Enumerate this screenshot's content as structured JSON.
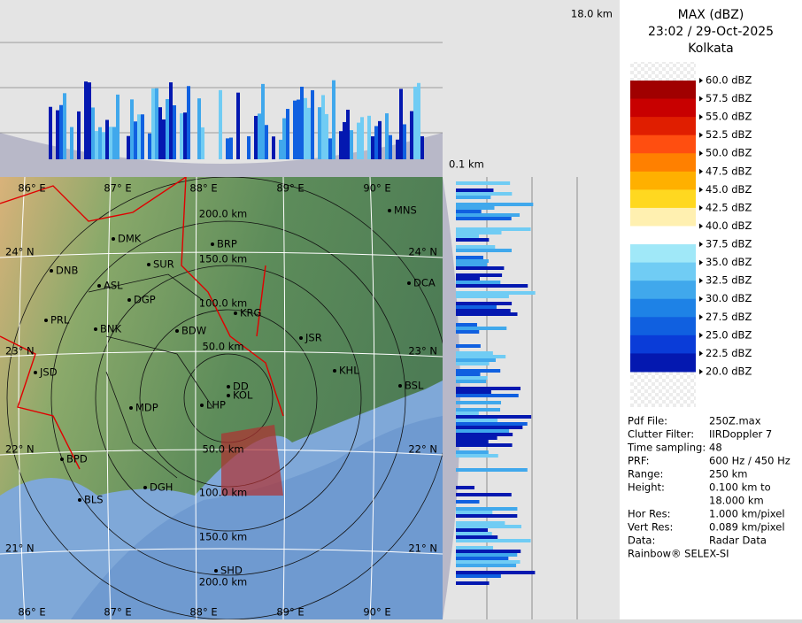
{
  "header": {
    "height_top": "18.0 km",
    "height_bottom": "0.1 km",
    "product": "MAX (dBZ)",
    "time": "23:02 / 29-Oct-2025",
    "station": "Kolkata"
  },
  "legend": {
    "labels": [
      "60.0 dBZ",
      "57.5 dBZ",
      "55.0 dBZ",
      "52.5 dBZ",
      "50.0 dBZ",
      "47.5 dBZ",
      "45.0 dBZ",
      "42.5 dBZ",
      "40.0 dBZ",
      "37.5 dBZ",
      "35.0 dBZ",
      "32.5 dBZ",
      "30.0 dBZ",
      "27.5 dBZ",
      "25.0 dBZ",
      "22.5 dBZ",
      "20.0 dBZ"
    ],
    "colors": [
      "#a00000",
      "#c80000",
      "#e01e00",
      "#ff4e10",
      "#ff8000",
      "#ffb000",
      "#ffd820",
      "#fff0b0",
      "#ffffff",
      "#a0e8f8",
      "#70ccf4",
      "#40a8ec",
      "#1e82e6",
      "#1060e0",
      "#0a3cd8",
      "#0418b0"
    ]
  },
  "info": [
    [
      "Pdf File:",
      "250Z.max"
    ],
    [
      "Clutter Filter:",
      "IIRDoppler 7"
    ],
    [
      "Time sampling:",
      "48"
    ],
    [
      "PRF:",
      "600 Hz / 450 Hz"
    ],
    [
      "Range:",
      "250 km"
    ],
    [
      "Height:",
      "0.100 km to"
    ],
    [
      "",
      "18.000 km"
    ],
    [
      "Hor Res:",
      "1.000 km/pixel"
    ],
    [
      "Vert Res:",
      "0.089 km/pixel"
    ],
    [
      "Data:",
      "Radar Data"
    ]
  ],
  "footer": "Rainbow® SELEX-SI",
  "map": {
    "lon_labels": [
      "86° E",
      "87° E",
      "88° E",
      "89° E",
      "90° E"
    ],
    "lat_labels": [
      "24° N",
      "23° N",
      "22° N",
      "21° N"
    ],
    "range_labels": [
      "50.0 km",
      "100.0 km",
      "150.0 km",
      "200.0 km"
    ],
    "cities": [
      "MNS",
      "DMK",
      "BRP",
      "SUR",
      "DNB",
      "DCA",
      "ASL",
      "DGP",
      "KRG",
      "PRL",
      "BNK",
      "BDW",
      "JSR",
      "JSD",
      "KHL",
      "BSL",
      "DD",
      "KOL",
      "MDP",
      "LHP",
      "BPD",
      "DGH",
      "BLS",
      "SHD"
    ]
  }
}
